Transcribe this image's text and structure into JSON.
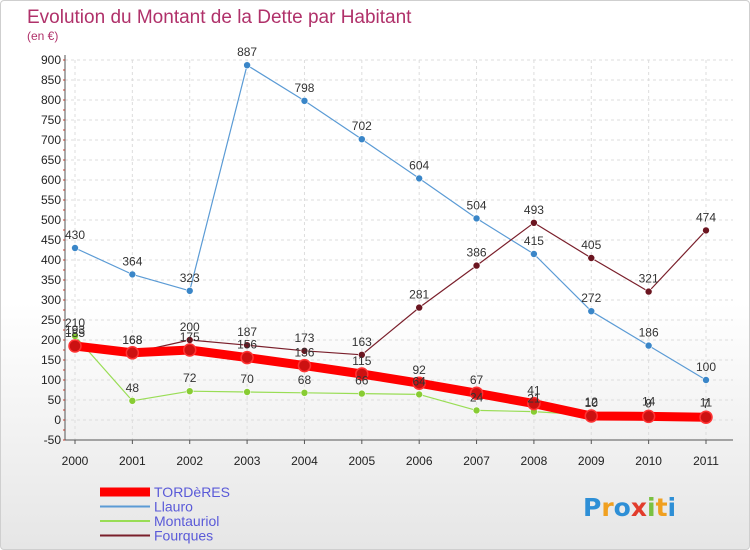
{
  "title": "Evolution du Montant de la Dette par Habitant",
  "subtitle": "(en €)",
  "logo_text": "Proxiti",
  "chart_data": {
    "type": "line",
    "title": "Evolution du Montant de la Dette par Habitant",
    "subtitle": "(en €)",
    "x": [
      "2000",
      "2001",
      "2002",
      "2003",
      "2004",
      "2005",
      "2006",
      "2007",
      "2008",
      "2009",
      "2010",
      "2011"
    ],
    "yticks": [
      "-50",
      "0",
      "50",
      "100",
      "150",
      "200",
      "250",
      "300",
      "350",
      "400",
      "450",
      "500",
      "550",
      "600",
      "650",
      "700",
      "750",
      "800",
      "850",
      "900"
    ],
    "ylim": [
      -50,
      900
    ],
    "grid": true,
    "legend": "bottom-left",
    "series": [
      {
        "name": "TORDèRES",
        "color": "#ff0000",
        "values": [
          185,
          168,
          175,
          156,
          136,
          115,
          92,
          67,
          41,
          10,
          9,
          7
        ],
        "labels": [
          "185",
          "168",
          "175",
          "156",
          "136",
          "115",
          "92",
          "67",
          "41",
          "10",
          "9",
          "7"
        ]
      },
      {
        "name": "Llauro",
        "color": "#5b9bd5",
        "values": [
          430,
          364,
          323,
          887,
          798,
          702,
          604,
          504,
          415,
          272,
          186,
          100
        ],
        "labels": [
          "430",
          "364",
          "323",
          "887",
          "798",
          "702",
          "604",
          "504",
          "415",
          "272",
          "186",
          "100"
        ]
      },
      {
        "name": "Montauriol",
        "color": "#99dd55",
        "values": [
          210,
          48,
          72,
          70,
          68,
          66,
          64,
          24,
          21,
          12,
          14,
          11
        ],
        "labels": [
          "210",
          "48",
          "72",
          "70",
          "68",
          "66",
          "64",
          "24",
          "21",
          "12",
          "14",
          "11"
        ]
      },
      {
        "name": "Fourques",
        "color": "#7a1f2b",
        "values": [
          193,
          168,
          200,
          187,
          173,
          163,
          281,
          386,
          493,
          405,
          321,
          474
        ],
        "labels": [
          "193",
          "168",
          "200",
          "187",
          "173",
          "163",
          "281",
          "386",
          "493",
          "405",
          "321",
          "474"
        ]
      }
    ]
  }
}
